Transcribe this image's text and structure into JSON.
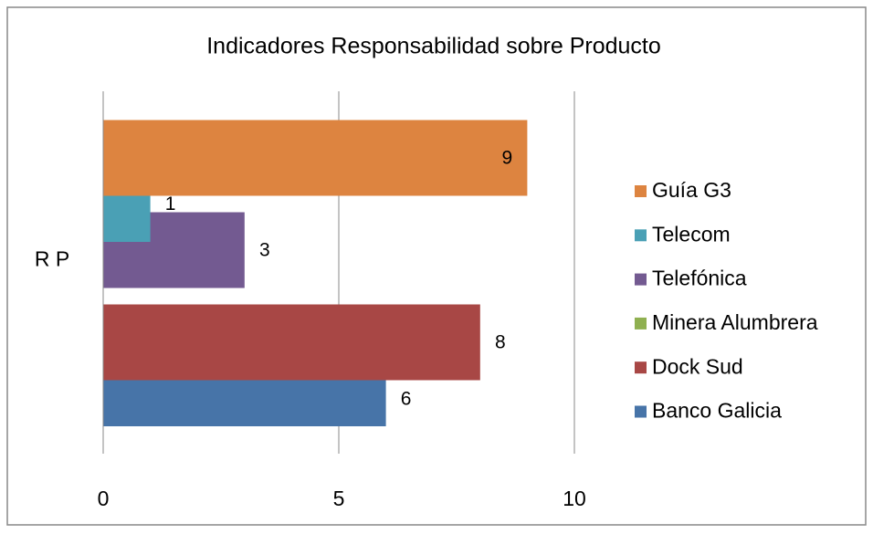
{
  "chart_data": {
    "type": "bar",
    "orientation": "horizontal",
    "title": "Indicadores Responsabilidad sobre Producto",
    "categories": [
      "R P"
    ],
    "series": [
      {
        "name": "Banco Galicia",
        "color": "#4774a8",
        "values": [
          6
        ]
      },
      {
        "name": "Dock Sud",
        "color": "#a84745",
        "values": [
          8
        ]
      },
      {
        "name": "Minera Alumbrera",
        "color": "#8fb050",
        "values": [
          null
        ]
      },
      {
        "name": "Telefónica",
        "color": "#735a91",
        "values": [
          3
        ]
      },
      {
        "name": "Telecom",
        "color": "#4aa0b5",
        "values": [
          1
        ]
      },
      {
        "name": "Guía G3",
        "color": "#dd8440",
        "values": [
          9
        ]
      }
    ],
    "xlim": [
      0,
      10
    ],
    "xticks": [
      0,
      5,
      10
    ],
    "grid": true,
    "legend": "right"
  }
}
